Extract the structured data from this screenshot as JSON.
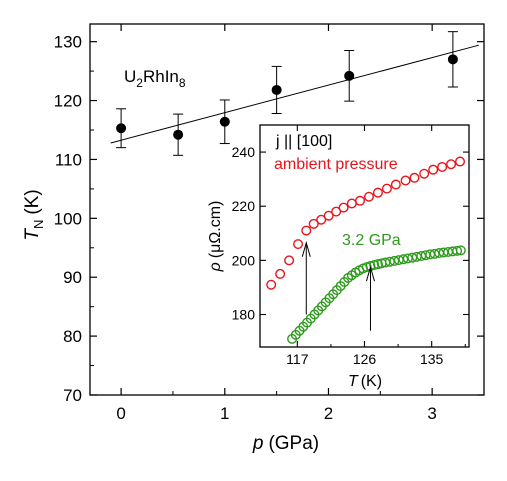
{
  "chart_data": [
    {
      "type": "scatter",
      "xlabel_symbol": "p",
      "xlabel_unit": "(GPa)",
      "ylabel_symbol": "T",
      "ylabel_sub": "N",
      "ylabel_unit": "(K)",
      "xlim": [
        -0.3,
        3.5
      ],
      "ylim": [
        70,
        133
      ],
      "xticks": [
        0,
        1,
        2,
        3
      ],
      "yticks": [
        70,
        80,
        90,
        100,
        110,
        120,
        130
      ],
      "annotation": {
        "base": "U",
        "sub1": "2",
        "mid": "RhIn",
        "sub2": "8"
      },
      "series": [
        {
          "color": "#000000",
          "marker": "filled-circle",
          "points": [
            {
              "x": 0.0,
              "y": 115.3,
              "err": 3.3
            },
            {
              "x": 0.55,
              "y": 114.2,
              "err": 3.5
            },
            {
              "x": 1.0,
              "y": 116.4,
              "err": 3.7
            },
            {
              "x": 1.5,
              "y": 121.8,
              "err": 4.0
            },
            {
              "x": 2.2,
              "y": 124.2,
              "err": 4.3
            },
            {
              "x": 3.2,
              "y": 127.0,
              "err": 4.7
            }
          ]
        }
      ],
      "fit_line": {
        "x": [
          -0.1,
          3.45
        ],
        "y": [
          112.8,
          129.4
        ]
      }
    },
    {
      "type": "scatter",
      "xlabel_symbol": "T",
      "xlabel_unit": "(K)",
      "ylabel_symbol": "ρ",
      "ylabel_unit": "(μΩ.cm)",
      "xlim": [
        112,
        140
      ],
      "ylim": [
        168,
        250
      ],
      "xticks": [
        117,
        126,
        135
      ],
      "yticks": [
        180,
        200,
        220,
        240
      ],
      "header": "j || [100]",
      "series": [
        {
          "name": "ambient pressure",
          "color": "#e8141c",
          "marker": "open-circle",
          "x": [
            113.5,
            114.7,
            115.9,
            117.1,
            118.2,
            119.2,
            120.2,
            121.2,
            122.2,
            123.2,
            124.3,
            125.4,
            126.6,
            127.8,
            129.0,
            130.2,
            131.5,
            132.7,
            134.0,
            135.2,
            136.4,
            137.6,
            138.8
          ],
          "y": [
            191,
            195,
            200,
            206,
            211,
            213.5,
            215,
            216.5,
            218,
            219.5,
            221,
            222,
            223.5,
            225,
            226.5,
            228,
            229.5,
            230.5,
            232,
            233.5,
            234.5,
            235.5,
            236.5
          ]
        },
        {
          "name": "3.2 GPa",
          "color": "#2f9a1e",
          "marker": "open-circle",
          "x": [
            116.3,
            116.8,
            117.3,
            117.8,
            118.3,
            118.8,
            119.3,
            119.8,
            120.3,
            120.8,
            121.3,
            121.8,
            122.3,
            122.8,
            123.3,
            123.8,
            124.3,
            124.8,
            125.3,
            125.8,
            126.3,
            126.8,
            127.3,
            127.8,
            128.3,
            128.8,
            129.4,
            130.0,
            130.6,
            131.2,
            131.8,
            132.4,
            133.0,
            133.6,
            134.2,
            134.8,
            135.4,
            136.0,
            136.6,
            137.2,
            137.8,
            138.4,
            138.9
          ],
          "y": [
            171,
            172.5,
            174,
            175.5,
            177,
            178.5,
            180,
            181.5,
            183,
            184.5,
            186,
            187.5,
            189,
            190.5,
            192,
            193.5,
            194.5,
            195.5,
            196.3,
            197,
            197.5,
            197.9,
            198.3,
            198.6,
            198.9,
            199.2,
            199.5,
            199.8,
            200.1,
            200.4,
            200.7,
            201.0,
            201.3,
            201.6,
            201.9,
            202.2,
            202.4,
            202.7,
            202.9,
            203.1,
            203.3,
            203.5,
            203.7
          ]
        }
      ],
      "arrows": [
        {
          "x": 118.2,
          "y_tail": 180,
          "y_head": 206.5
        },
        {
          "x": 126.8,
          "y_tail": 174,
          "y_head": 197.5
        }
      ]
    }
  ]
}
